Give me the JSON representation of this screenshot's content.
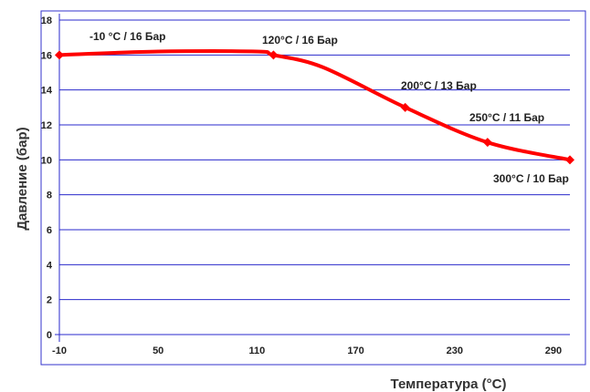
{
  "chart_data": {
    "type": "line",
    "title": "",
    "xlabel": "Температура  (°C)",
    "ylabel": "Давление (бар)",
    "xlim": [
      -10,
      300
    ],
    "ylim": [
      0,
      18
    ],
    "x_ticks": [
      "-10",
      "50",
      "110",
      "170",
      "230",
      "290"
    ],
    "y_ticks": [
      "0",
      "2",
      "4",
      "6",
      "8",
      "10",
      "12",
      "14",
      "16",
      "18"
    ],
    "grid": "horizontal",
    "line_color": "#ff0000",
    "grid_color": "#2a2acc",
    "series": [
      {
        "x": [
          -10,
          50,
          110,
          120,
          150,
          200,
          250,
          300
        ],
        "y": [
          16,
          16.2,
          16.2,
          16,
          15.3,
          13,
          11,
          10
        ],
        "markers_at": [
          0,
          3,
          5,
          6,
          7
        ]
      }
    ],
    "annotations": [
      {
        "text": "-10 °C / 16 Бар",
        "x": -10,
        "y": 16
      },
      {
        "text": "120°C / 16 Бар",
        "x": 120,
        "y": 16
      },
      {
        "text": "200°C / 13 Бар",
        "x": 200,
        "y": 13
      },
      {
        "text": "250°C / 11 Бар",
        "x": 250,
        "y": 11
      },
      {
        "text": "300°C / 10  Бар",
        "x": 300,
        "y": 10
      }
    ]
  }
}
